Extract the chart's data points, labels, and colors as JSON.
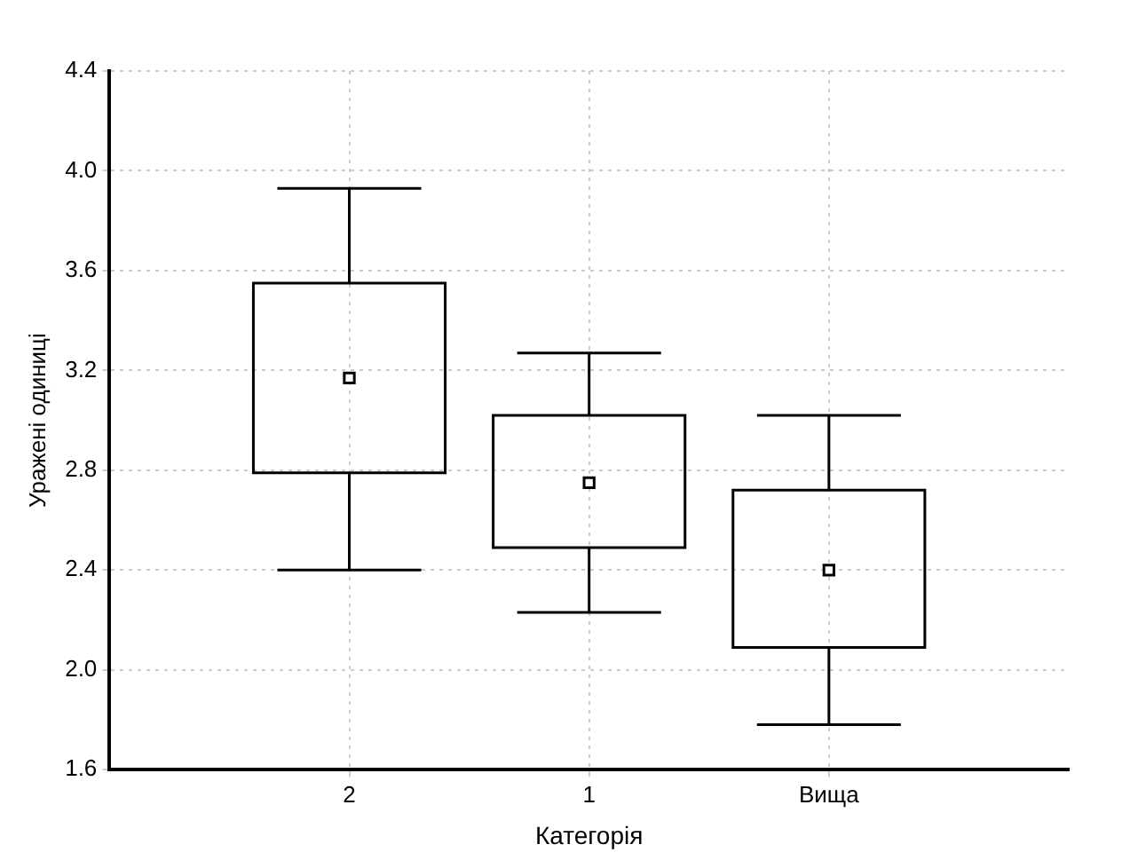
{
  "chart_data": {
    "type": "box",
    "xlabel": "Категорія",
    "ylabel": "Уражені одиниці",
    "categories": [
      "2",
      "1",
      "Вища"
    ],
    "boxes": [
      {
        "low": 2.4,
        "q1": 2.79,
        "median": 3.17,
        "q3": 3.55,
        "high": 3.93
      },
      {
        "low": 2.23,
        "q1": 2.49,
        "median": 2.75,
        "q3": 3.02,
        "high": 3.27
      },
      {
        "low": 1.78,
        "q1": 2.09,
        "median": 2.4,
        "q3": 2.72,
        "high": 3.02
      }
    ],
    "color": "#000000",
    "marker": "square",
    "ylim": [
      1.6,
      4.4
    ],
    "yticks": [
      1.6,
      {
        "value": 2,
        "label": "2.0"
      },
      2.4,
      2.8,
      3.2,
      3.6,
      {
        "value": 4,
        "label": "4.0"
      },
      4.4
    ],
    "grid": true
  }
}
